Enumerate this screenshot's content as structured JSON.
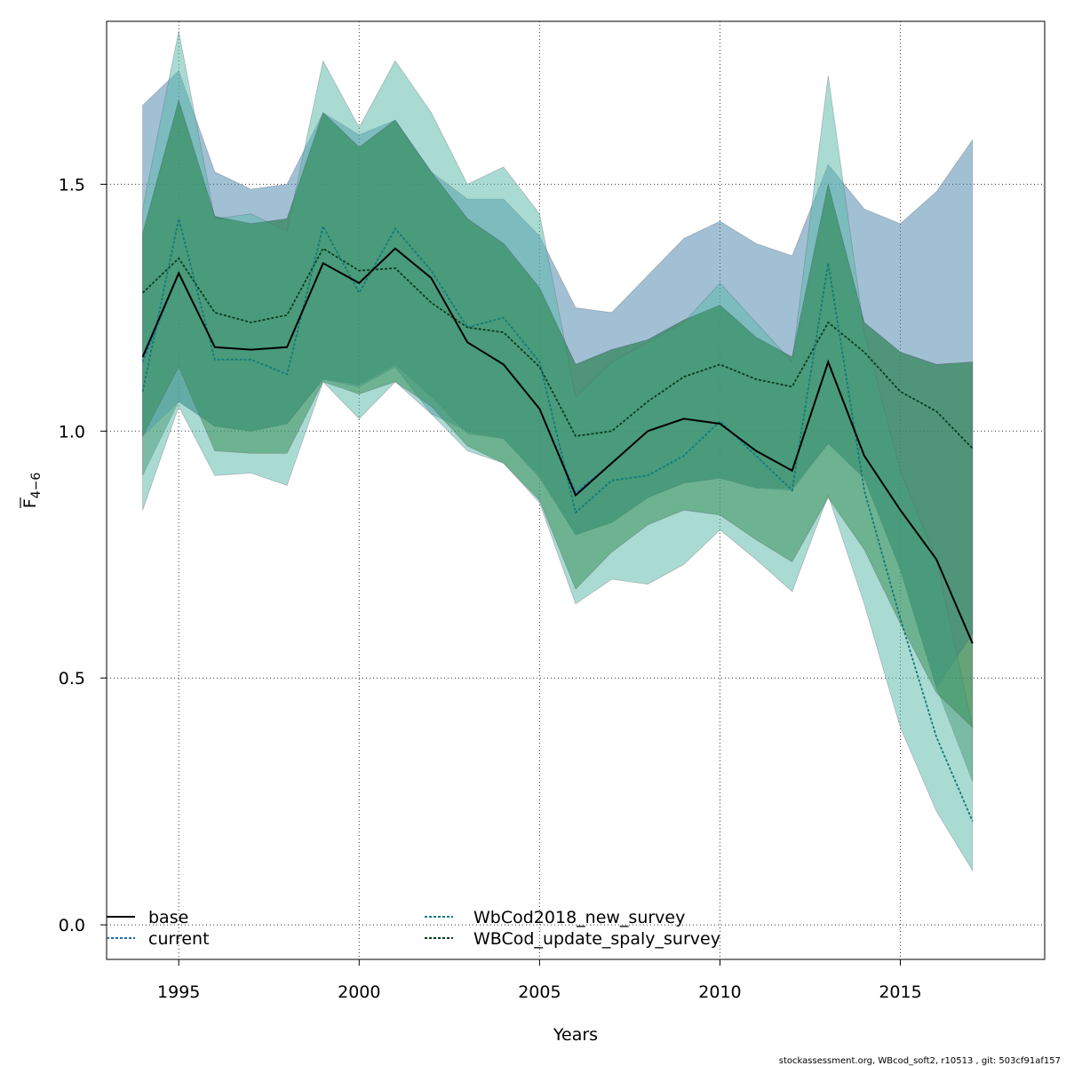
{
  "chart_data": {
    "type": "line",
    "title": "",
    "xlabel": "Years",
    "ylabel_main": "F",
    "ylabel_sub": "4−6",
    "xlim": [
      1993,
      2019
    ],
    "ylim": [
      -0.07,
      1.83
    ],
    "xticks": [
      1995,
      2000,
      2005,
      2010,
      2015
    ],
    "xtick_labels": [
      "1995",
      "2000",
      "2005",
      "2010",
      "2015"
    ],
    "yticks": [
      0.0,
      0.5,
      1.0,
      1.5
    ],
    "ytick_labels": [
      "0.0",
      "0.5",
      "1.0",
      "1.5"
    ],
    "grid": true,
    "legend_position": "bottom-left",
    "x": [
      1994,
      1995,
      1996,
      1997,
      1998,
      1999,
      2000,
      2001,
      2002,
      2003,
      2004,
      2005,
      2006,
      2007,
      2008,
      2009,
      2010,
      2011,
      2012,
      2013,
      2014,
      2015,
      2016,
      2017
    ],
    "series": [
      {
        "name": "base",
        "color": "#000000",
        "dash": "solid",
        "band_color": "#3a7d44",
        "values": [
          1.15,
          1.32,
          1.17,
          1.165,
          1.17,
          1.34,
          1.3,
          1.37,
          1.31,
          1.18,
          1.135,
          1.045,
          0.87,
          0.935,
          1.0,
          1.025,
          1.015,
          0.96,
          0.92,
          1.14,
          0.95,
          0.84,
          0.74,
          0.57
        ],
        "lower": [
          0.91,
          1.06,
          1.01,
          1.0,
          1.015,
          1.105,
          1.095,
          1.135,
          1.07,
          0.995,
          0.985,
          0.91,
          0.79,
          0.815,
          0.865,
          0.895,
          0.905,
          0.885,
          0.885,
          0.975,
          0.905,
          0.72,
          0.48,
          0.29
        ],
        "upper": [
          1.4,
          1.67,
          1.435,
          1.42,
          1.43,
          1.645,
          1.575,
          1.63,
          1.525,
          1.43,
          1.38,
          1.29,
          1.135,
          1.165,
          1.185,
          1.225,
          1.255,
          1.19,
          1.15,
          1.5,
          1.22,
          1.16,
          1.135,
          1.14
        ]
      },
      {
        "name": "current",
        "color": "#1f6fb0",
        "dash": "dotted",
        "band_color": "#4682a9",
        "values": [
          1.14,
          1.32,
          1.17,
          1.165,
          1.17,
          1.34,
          1.3,
          1.37,
          1.31,
          1.18,
          1.135,
          1.045,
          0.875,
          0.935,
          1.0,
          1.025,
          1.015,
          0.96,
          0.92,
          1.14,
          0.95,
          0.84,
          0.74,
          0.57
        ],
        "lower": [
          0.99,
          1.06,
          1.01,
          1.0,
          1.015,
          1.105,
          1.09,
          1.13,
          1.035,
          1.0,
          0.985,
          0.905,
          0.79,
          0.815,
          0.865,
          0.895,
          0.905,
          0.885,
          0.88,
          0.975,
          0.905,
          0.72,
          0.48,
          0.59
        ],
        "upper": [
          1.66,
          1.73,
          1.525,
          1.49,
          1.5,
          1.645,
          1.6,
          1.63,
          1.525,
          1.47,
          1.47,
          1.395,
          1.25,
          1.24,
          1.315,
          1.39,
          1.425,
          1.38,
          1.355,
          1.54,
          1.45,
          1.42,
          1.485,
          1.59
        ]
      },
      {
        "name": "WbCod2018_new_survey",
        "color": "#137a7a",
        "dash": "dotted",
        "band_color": "#55b8a8",
        "values": [
          1.08,
          1.43,
          1.145,
          1.145,
          1.115,
          1.415,
          1.28,
          1.41,
          1.325,
          1.21,
          1.23,
          1.14,
          0.835,
          0.9,
          0.91,
          0.95,
          1.02,
          0.95,
          0.88,
          1.34,
          0.88,
          0.62,
          0.38,
          0.21
        ],
        "lower": [
          0.84,
          1.05,
          0.91,
          0.915,
          0.89,
          1.1,
          1.025,
          1.1,
          1.035,
          0.96,
          0.935,
          0.855,
          0.65,
          0.7,
          0.69,
          0.73,
          0.8,
          0.74,
          0.675,
          0.87,
          0.65,
          0.4,
          0.23,
          0.11
        ],
        "upper": [
          1.45,
          1.81,
          1.43,
          1.44,
          1.405,
          1.75,
          1.615,
          1.75,
          1.645,
          1.5,
          1.535,
          1.44,
          1.07,
          1.14,
          1.18,
          1.22,
          1.3,
          1.22,
          1.14,
          1.72,
          1.2,
          0.92,
          0.74,
          0.4
        ]
      },
      {
        "name": "WBCod_update_spaly_survey",
        "color": "#0a3d1a",
        "dash": "dotted",
        "band_color": "#2f8a50",
        "values": [
          1.28,
          1.35,
          1.24,
          1.22,
          1.235,
          1.37,
          1.325,
          1.33,
          1.26,
          1.21,
          1.2,
          1.13,
          0.99,
          1.0,
          1.06,
          1.11,
          1.135,
          1.105,
          1.09,
          1.22,
          1.16,
          1.08,
          1.04,
          0.965
        ],
        "lower": [
          0.99,
          1.13,
          0.96,
          0.955,
          0.955,
          1.1,
          1.075,
          1.1,
          1.05,
          0.97,
          0.935,
          0.86,
          0.68,
          0.755,
          0.81,
          0.84,
          0.83,
          0.78,
          0.735,
          0.865,
          0.76,
          0.61,
          0.47,
          0.4
        ],
        "upper": [
          1.4,
          1.67,
          1.435,
          1.42,
          1.43,
          1.645,
          1.575,
          1.63,
          1.525,
          1.43,
          1.38,
          1.29,
          1.135,
          1.165,
          1.185,
          1.225,
          1.255,
          1.19,
          1.15,
          1.5,
          1.22,
          1.16,
          1.135,
          1.14
        ]
      }
    ]
  },
  "legend": [
    {
      "label": "base",
      "color": "#000000",
      "dash": "solid"
    },
    {
      "label": "current",
      "color": "#1f6fb0",
      "dash": "dotted"
    },
    {
      "label": "WbCod2018_new_survey",
      "color": "#137a7a",
      "dash": "dotted"
    },
    {
      "label": "WBCod_update_spaly_survey",
      "color": "#0a3d1a",
      "dash": "dotted"
    }
  ],
  "footer": "stockassessment.org, WBcod_soft2, r10513 , git: 503cf91af157"
}
